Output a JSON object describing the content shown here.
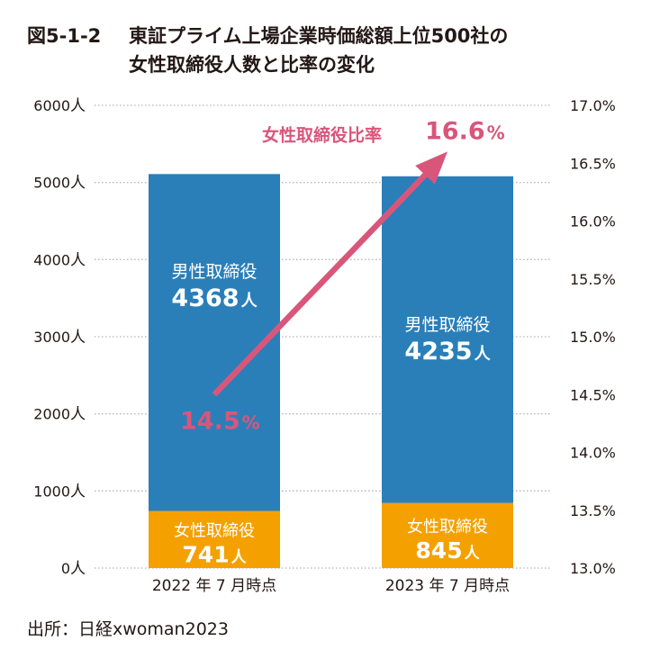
{
  "title": {
    "figure_no": "図5-1-2",
    "line1": "東証プライム上場企業時価総額上位500社の",
    "line2": "女性取締役人数と比率の変化"
  },
  "source": "出所：日経xwoman2023",
  "colors": {
    "male": "#2a7fb9",
    "female": "#f4a100",
    "ratio": "#d9567b",
    "text": "#231815",
    "grid": "#b5b5b5"
  },
  "chart_data": {
    "type": "bar",
    "stacked": true,
    "categories": [
      "2022 年 7 月時点",
      "2023 年 7 月時点"
    ],
    "series": [
      {
        "name": "女性取締役",
        "values": [
          741,
          845
        ],
        "value_labels": [
          "741",
          "845"
        ],
        "unit": "人",
        "color": "#f4a100"
      },
      {
        "name": "男性取締役",
        "values": [
          4368,
          4235
        ],
        "value_labels": [
          "4368",
          "4235"
        ],
        "unit": "人",
        "color": "#2a7fb9"
      }
    ],
    "ratio_series": {
      "name": "女性取締役比率",
      "values": [
        14.5,
        16.6
      ],
      "value_labels": [
        "14.5",
        "16.6"
      ],
      "unit": "%",
      "color": "#d9567b"
    },
    "y_left": {
      "ylim": [
        0,
        6000
      ],
      "ticks": [
        0,
        1000,
        2000,
        3000,
        4000,
        5000,
        6000
      ],
      "tick_labels": [
        "0",
        "1000",
        "2000",
        "3000",
        "4000",
        "5000",
        "6000"
      ],
      "unit": "人"
    },
    "y_right": {
      "ylim": [
        13.0,
        17.0
      ],
      "tick_labels": [
        "13.0%",
        "13.5%",
        "14.0%",
        "14.5%",
        "15.0%",
        "15.5%",
        "16.0%",
        "16.5%",
        "17.0%"
      ]
    },
    "grid": "dotted-horizontal"
  }
}
